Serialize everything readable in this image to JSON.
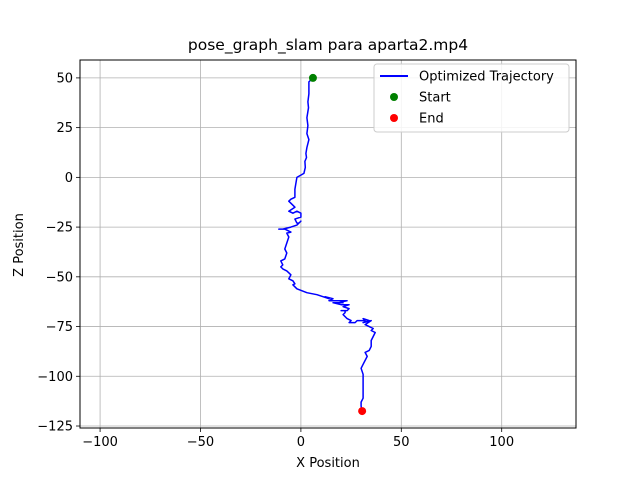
{
  "chart_data": {
    "type": "line",
    "title": "pose_graph_slam para aparta2.mp4",
    "xlabel": "X Position",
    "ylabel": "Z Position",
    "xlim": [
      -110,
      137
    ],
    "ylim": [
      -126,
      59
    ],
    "xticks": [
      -100,
      -50,
      0,
      50,
      100
    ],
    "yticks": [
      50,
      25,
      0,
      -25,
      -50,
      -75,
      -100,
      -125
    ],
    "grid": true,
    "legend_position": "top-right",
    "colors": {
      "trajectory": "#0000ff",
      "start": "#008000",
      "end": "#ff0000",
      "grid": "#b0b0b0"
    },
    "legend": [
      {
        "label": "Optimized Trajectory",
        "kind": "line",
        "color": "#0000ff"
      },
      {
        "label": "Start",
        "kind": "marker",
        "color": "#008000"
      },
      {
        "label": "End",
        "kind": "marker",
        "color": "#ff0000"
      }
    ],
    "series": [
      {
        "name": "Optimized Trajectory",
        "points": [
          [
            6,
            50
          ],
          [
            4,
            48
          ],
          [
            4,
            45
          ],
          [
            4,
            42
          ],
          [
            3.5,
            38
          ],
          [
            3.8,
            35
          ],
          [
            3,
            30
          ],
          [
            3.5,
            26
          ],
          [
            3,
            22
          ],
          [
            4,
            19
          ],
          [
            3,
            15
          ],
          [
            2.5,
            12
          ],
          [
            2.8,
            10
          ],
          [
            2,
            8
          ],
          [
            2.2,
            5
          ],
          [
            1.5,
            2
          ],
          [
            -2,
            0
          ],
          [
            -2.5,
            -3
          ],
          [
            -3,
            -6
          ],
          [
            -3,
            -10
          ],
          [
            -5,
            -11
          ],
          [
            -6,
            -12
          ],
          [
            -4,
            -14
          ],
          [
            -3,
            -15
          ],
          [
            -6,
            -17
          ],
          [
            -4,
            -18
          ],
          [
            -2,
            -17
          ],
          [
            0,
            -18
          ],
          [
            0,
            -20
          ],
          [
            -3,
            -21
          ],
          [
            -2,
            -23
          ],
          [
            -1,
            -23
          ],
          [
            0,
            -22
          ],
          [
            -2,
            -24
          ],
          [
            -5,
            -25
          ],
          [
            -9,
            -26
          ],
          [
            -11,
            -26
          ],
          [
            -8,
            -26
          ],
          [
            -6,
            -27
          ],
          [
            -5,
            -27.5
          ],
          [
            -7,
            -28
          ],
          [
            -6,
            -30
          ],
          [
            -7,
            -33
          ],
          [
            -8,
            -36
          ],
          [
            -7,
            -38
          ],
          [
            -8,
            -41
          ],
          [
            -10,
            -42
          ],
          [
            -9,
            -44
          ],
          [
            -10,
            -45
          ],
          [
            -9,
            -46
          ],
          [
            -7,
            -47
          ],
          [
            -6,
            -48
          ],
          [
            -5,
            -49
          ],
          [
            -6,
            -51
          ],
          [
            -4,
            -52
          ],
          [
            -3,
            -53.5
          ],
          [
            -4,
            -54
          ],
          [
            -3,
            -55
          ],
          [
            -2,
            -56
          ],
          [
            3,
            -58
          ],
          [
            8,
            -59
          ],
          [
            11,
            -60
          ],
          [
            14,
            -61
          ],
          [
            12,
            -60
          ],
          [
            16,
            -61
          ],
          [
            14,
            -62
          ],
          [
            18,
            -62
          ],
          [
            20,
            -62
          ],
          [
            23,
            -62
          ],
          [
            19,
            -63
          ],
          [
            21,
            -63
          ],
          [
            16,
            -63
          ],
          [
            20,
            -64
          ],
          [
            24,
            -64
          ],
          [
            21,
            -65
          ],
          [
            24,
            -66
          ],
          [
            23,
            -67
          ],
          [
            20,
            -67
          ],
          [
            22,
            -67
          ],
          [
            22,
            -68
          ],
          [
            21,
            -69
          ],
          [
            23,
            -71
          ],
          [
            25,
            -72
          ],
          [
            24,
            -73
          ],
          [
            27,
            -73
          ],
          [
            28,
            -72
          ],
          [
            32,
            -72
          ],
          [
            31,
            -71
          ],
          [
            34,
            -72
          ],
          [
            31,
            -73
          ],
          [
            35,
            -72
          ],
          [
            32,
            -74
          ],
          [
            34,
            -75
          ],
          [
            36,
            -76
          ],
          [
            35,
            -77
          ],
          [
            37,
            -78
          ],
          [
            36,
            -80
          ],
          [
            35,
            -82
          ],
          [
            35,
            -85
          ],
          [
            34,
            -87
          ],
          [
            32,
            -88
          ],
          [
            33,
            -90
          ],
          [
            31,
            -94
          ],
          [
            30,
            -96
          ],
          [
            31,
            -99
          ],
          [
            31,
            -102
          ],
          [
            31,
            -105
          ],
          [
            31,
            -108
          ],
          [
            31,
            -111
          ],
          [
            30,
            -113
          ],
          [
            30,
            -115
          ],
          [
            30.5,
            -117.5
          ]
        ]
      }
    ],
    "start_point": [
      6,
      50
    ],
    "end_point": [
      30.5,
      -117.5
    ]
  }
}
